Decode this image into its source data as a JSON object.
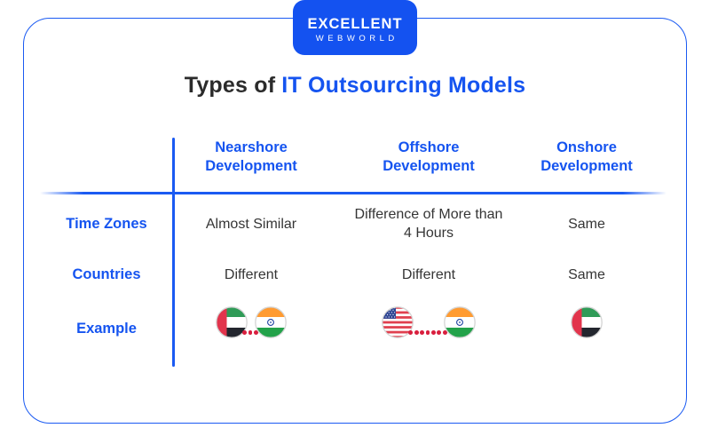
{
  "brand": {
    "name_top": "EXCELLENT",
    "name_bottom": "WEBWORLD"
  },
  "title": {
    "plain": "Types of",
    "accent": "IT Outsourcing Models"
  },
  "colors": {
    "accent_blue": "#1554F0",
    "line_blue": "#1A5AF2",
    "badge_blue": "#1452F0",
    "title_dark": "#2B2B2B",
    "body_text": "#353535",
    "dot_red": "#D91F3E"
  },
  "table": {
    "column_headers": [
      "Nearshore Development",
      "Offshore Development",
      "Onshore Development"
    ],
    "rows": [
      {
        "label": "Time Zones",
        "values": [
          "Almost Similar",
          "Difference of More than 4 Hours",
          "Same"
        ]
      },
      {
        "label": "Countries",
        "values": [
          "Different",
          "Different",
          "Same"
        ]
      }
    ],
    "example": {
      "label": "Example",
      "cells": [
        {
          "flags": [
            "uae-flag",
            "india-flag"
          ],
          "dots": 3
        },
        {
          "flags": [
            "usa-flag",
            "india-flag"
          ],
          "dots": 7
        },
        {
          "flags": [
            "uae-flag"
          ],
          "dots": 0
        }
      ]
    }
  }
}
